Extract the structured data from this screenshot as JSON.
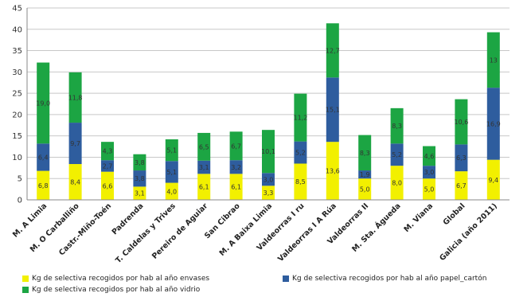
{
  "chart_data": {
    "type": "bar",
    "stacked": true,
    "categories": [
      "M. A Limia",
      "M. O Carballiño",
      "Castr.-Miño-Toén",
      "Padrenda",
      "T. Caldelas y Trives",
      "Pereiro de Aguiar",
      "San Cibrao",
      "M. A Baixa Limia",
      "Valdeorras I ru",
      "Valdeorras I A Rúa",
      "Valdeorras II",
      "M. Sta. Águeda",
      "M. Viana",
      "Global",
      "Galicia (año 2011)"
    ],
    "series": [
      {
        "name": "Kg de selectiva recogidos por hab al año envases",
        "color": "#f2f000",
        "values": [
          6.8,
          8.4,
          6.6,
          3.1,
          4.0,
          6.1,
          6.1,
          3.3,
          8.5,
          13.6,
          5.0,
          8.0,
          5.0,
          6.7,
          9.4
        ],
        "labels": [
          "6,8",
          "8,4",
          "6,6",
          "3,1",
          "4,0",
          "6,1",
          "6,1",
          "3,3",
          "8,5",
          "13,6",
          "5,0",
          "8,0",
          "5,0",
          "6,7",
          "9,4"
        ]
      },
      {
        "name": "Kg de selectiva recogidos por hab al año papel_cartón",
        "color": "#2e5d9e",
        "values": [
          6.4,
          9.7,
          2.7,
          3.8,
          5.1,
          3.1,
          3.2,
          3.0,
          5.2,
          15.1,
          1.9,
          5.2,
          3.0,
          6.3,
          16.9
        ],
        "labels": [
          "6,4",
          "9,7",
          "2,7",
          "3,8",
          "5,1",
          "3,1",
          "3,2",
          "3,0",
          "5,2",
          "15,1",
          "1,9",
          "5,2",
          "3,0",
          "6,3",
          "16,9"
        ]
      },
      {
        "name": "Kg de selectiva recogidos por hab al año vidrio",
        "color": "#1ca543",
        "values": [
          19.0,
          11.8,
          4.3,
          3.8,
          5.1,
          6.5,
          6.7,
          10.1,
          11.2,
          12.7,
          8.3,
          8.3,
          4.6,
          10.6,
          13.0
        ],
        "labels": [
          "19,0",
          "11,8",
          "4,3",
          "3,8",
          "5,1",
          "6,5",
          "6,7",
          "10,1",
          "11,2",
          "12,7",
          "8,3",
          "8,3",
          "4,6",
          "10,6",
          "13"
        ]
      }
    ],
    "ylim": [
      0,
      45
    ],
    "yticks": [
      "0",
      "5",
      "10",
      "15",
      "20",
      "25",
      "30",
      "35",
      "40",
      "45"
    ],
    "grid": true,
    "legend_position": "bottom"
  }
}
